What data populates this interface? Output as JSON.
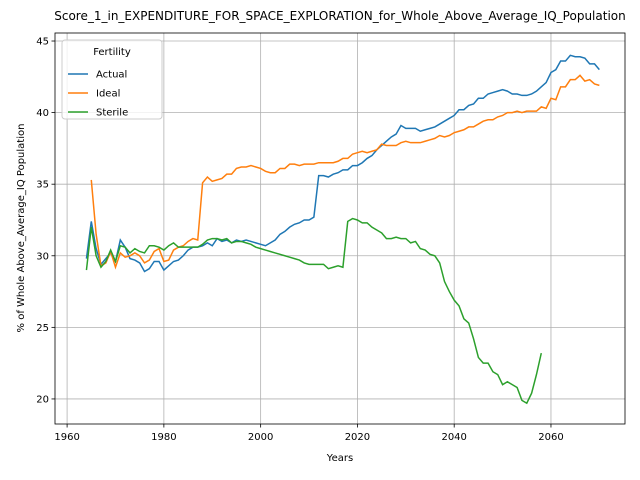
{
  "chart_data": {
    "type": "line",
    "title": "Score_1_in_EXPENDITURE_FOR_SPACE_EXPLORATION_for_Whole_Above_Average_IQ_Population",
    "xlabel": "Years",
    "ylabel": "% of Whole Above_Average_IQ Population",
    "legend_title": "Fertility",
    "legend": "upper left",
    "grid": true,
    "x": [
      1964,
      1965,
      1966,
      1967,
      1968,
      1969,
      1970,
      1971,
      1972,
      1973,
      1974,
      1975,
      1976,
      1977,
      1978,
      1979,
      1980,
      1981,
      1982,
      1983,
      1984,
      1985,
      1986,
      1987,
      1988,
      1989,
      1990,
      1991,
      1992,
      1993,
      1994,
      1995,
      1996,
      1997,
      1998,
      1999,
      2000,
      2001,
      2002,
      2003,
      2004,
      2005,
      2006,
      2007,
      2008,
      2009,
      2010,
      2011,
      2012,
      2013,
      2014,
      2015,
      2016,
      2017,
      2018,
      2019,
      2020,
      2021,
      2022,
      2023,
      2024,
      2025,
      2026,
      2027,
      2028,
      2029,
      2030,
      2031,
      2032,
      2033,
      2034,
      2035,
      2036,
      2037,
      2038,
      2039,
      2040,
      2041,
      2042,
      2043,
      2044,
      2045,
      2046,
      2047,
      2048,
      2049,
      2050,
      2051,
      2052,
      2053,
      2054,
      2055,
      2056,
      2057,
      2058,
      2059,
      2060,
      2061,
      2062,
      2063,
      2064,
      2065,
      2066,
      2067,
      2068,
      2069,
      2070
    ],
    "series": [
      {
        "name": "Actual",
        "color": "#1f77b4",
        "values": [
          29.8,
          32.4,
          30.5,
          29.4,
          29.8,
          30.2,
          29.6,
          31.1,
          30.6,
          29.8,
          29.7,
          29.5,
          28.9,
          29.1,
          29.6,
          29.6,
          29.0,
          29.3,
          29.6,
          29.7,
          30.0,
          30.4,
          30.6,
          30.6,
          30.7,
          30.9,
          30.7,
          31.2,
          31.0,
          31.1,
          30.9,
          31.1,
          31.0,
          31.1,
          31.0,
          30.9,
          30.8,
          30.7,
          30.9,
          31.1,
          31.5,
          31.7,
          32.0,
          32.2,
          32.3,
          32.5,
          32.5,
          32.7,
          35.6,
          35.6,
          35.5,
          35.7,
          35.8,
          36.0,
          36.0,
          36.3,
          36.3,
          36.5,
          36.8,
          37.0,
          37.4,
          37.7,
          38.0,
          38.3,
          38.5,
          39.1,
          38.9,
          38.9,
          38.9,
          38.7,
          38.8,
          38.9,
          39.0,
          39.2,
          39.4,
          39.6,
          39.8,
          40.2,
          40.2,
          40.5,
          40.6,
          41.0,
          41.0,
          41.3,
          41.4,
          41.5,
          41.6,
          41.5,
          41.3,
          41.3,
          41.2,
          41.2,
          41.3,
          41.5,
          41.8,
          42.1,
          42.8,
          43.0,
          43.6,
          43.6,
          44.0,
          43.9,
          43.9,
          43.8,
          43.4,
          43.4,
          43.0
        ]
      },
      {
        "name": "Ideal",
        "color": "#ff7f0e",
        "values": [
          null,
          35.3,
          31.5,
          29.3,
          29.5,
          30.3,
          29.2,
          30.2,
          29.9,
          30.0,
          30.2,
          30.0,
          29.5,
          29.7,
          30.3,
          30.5,
          29.6,
          29.7,
          30.4,
          30.6,
          30.7,
          31.0,
          31.2,
          31.1,
          35.1,
          35.5,
          35.2,
          35.3,
          35.4,
          35.7,
          35.7,
          36.1,
          36.2,
          36.2,
          36.3,
          36.2,
          36.1,
          35.9,
          35.8,
          35.8,
          36.1,
          36.1,
          36.4,
          36.4,
          36.3,
          36.4,
          36.4,
          36.4,
          36.5,
          36.5,
          36.5,
          36.5,
          36.6,
          36.8,
          36.8,
          37.1,
          37.2,
          37.3,
          37.2,
          37.3,
          37.4,
          37.8,
          37.7,
          37.7,
          37.7,
          37.9,
          38.0,
          37.9,
          37.9,
          37.9,
          38.0,
          38.1,
          38.2,
          38.4,
          38.3,
          38.4,
          38.6,
          38.7,
          38.8,
          39.0,
          39.0,
          39.2,
          39.4,
          39.5,
          39.5,
          39.7,
          39.8,
          40.0,
          40.0,
          40.1,
          40.0,
          40.1,
          40.1,
          40.1,
          40.4,
          40.3,
          41.0,
          40.9,
          41.8,
          41.8,
          42.3,
          42.3,
          42.6,
          42.2,
          42.3,
          42.0,
          41.9
        ]
      },
      {
        "name": "Sterile",
        "color": "#2ca02c",
        "values": [
          29.0,
          32.0,
          30.0,
          29.2,
          29.6,
          30.4,
          29.6,
          30.7,
          30.6,
          30.2,
          30.5,
          30.3,
          30.2,
          30.7,
          30.7,
          30.6,
          30.4,
          30.7,
          30.9,
          30.6,
          30.6,
          30.6,
          30.6,
          30.6,
          30.8,
          31.1,
          31.2,
          31.2,
          31.1,
          31.2,
          30.9,
          31.0,
          31.0,
          30.9,
          30.8,
          30.6,
          30.5,
          30.4,
          30.3,
          30.2,
          30.1,
          30.0,
          29.9,
          29.8,
          29.7,
          29.5,
          29.4,
          29.4,
          29.4,
          29.4,
          29.1,
          29.2,
          29.3,
          29.2,
          32.4,
          32.6,
          32.5,
          32.3,
          32.3,
          32.0,
          31.8,
          31.6,
          31.2,
          31.2,
          31.3,
          31.2,
          31.2,
          30.9,
          31.0,
          30.5,
          30.4,
          30.1,
          30.0,
          29.5,
          28.2,
          27.5,
          26.9,
          26.5,
          25.6,
          25.3,
          24.2,
          22.9,
          22.5,
          22.5,
          21.9,
          21.7,
          21.0,
          21.2,
          21.0,
          20.8,
          19.9,
          19.7,
          20.4,
          21.7,
          23.2,
          null,
          null,
          null,
          null,
          null,
          null,
          null,
          null,
          null,
          null,
          null,
          null
        ]
      }
    ],
    "xlim": [
      1957.5,
      2075.3
    ],
    "ylim": [
      18.25,
      45.56
    ],
    "xticks": [
      1960,
      1980,
      2000,
      2020,
      2040,
      2060
    ],
    "yticks": [
      20,
      25,
      30,
      35,
      40,
      45
    ]
  }
}
